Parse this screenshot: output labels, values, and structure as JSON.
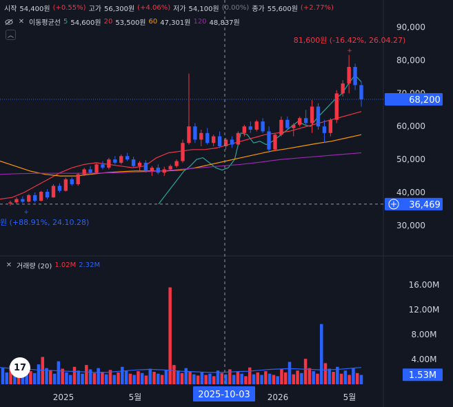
{
  "ohlc_legend": {
    "open_label": "시작",
    "open_value": "54,400원",
    "open_change": "(+0.55%)",
    "high_label": "고가",
    "high_value": "56,300원",
    "high_change": "(+4.06%)",
    "low_label": "저가",
    "low_value": "54,100원",
    "low_change": "(0.00%)",
    "close_label": "종가",
    "close_value": "55,600원",
    "close_change": "(+2.77%)"
  },
  "ma_legend": {
    "title": "이동평균선",
    "items": [
      {
        "period": "5",
        "value": "54,600원",
        "color": "#26a69a"
      },
      {
        "period": "20",
        "value": "53,500원",
        "color": "#f23645"
      },
      {
        "period": "60",
        "value": "47,301원",
        "color": "#ff9800"
      },
      {
        "period": "120",
        "value": "48,837원",
        "color": "#9c27b0"
      }
    ]
  },
  "volume_legend": {
    "title": "거래량 (20)",
    "value_red": "1.02M",
    "value_blue": "2.32M"
  },
  "annotations": {
    "high_label": "81,600원 (-16.42%, 26.04.27)",
    "low_label": "원 (+88.91%, 24.10.28)"
  },
  "price_badges": {
    "last_price": "68,200",
    "crosshair_price": "36,469",
    "volume_last": "1.53M"
  },
  "crosshair_date": "2025-10-03",
  "icons": {
    "eye": "eye-icon",
    "close": "close-icon",
    "collapse": "chevron-up-icon",
    "plus": "plus-circle-icon",
    "logo": "tradingview-logo"
  },
  "colors": {
    "background": "#131722",
    "up": "#f23645",
    "down": "#2962ff",
    "grid": "#1e222d"
  },
  "chart_data": [
    {
      "type": "candlestick",
      "title": "",
      "x_tick_labels": [
        "2025",
        "5월",
        "2026",
        "5월"
      ],
      "y_tick_labels": [
        "30,000",
        "40,000",
        "50,000",
        "60,000",
        "70,000",
        "80,000",
        "90,000"
      ],
      "ylim": [
        21000,
        92000
      ],
      "grid": false,
      "series": [
        {
          "name": "5",
          "color": "#26a69a",
          "values": [
            36500,
            39000,
            41500,
            44000,
            46500,
            48000,
            50000,
            50500,
            49000,
            47500,
            46800,
            47500,
            50000,
            58000,
            57500,
            55000,
            55500,
            54500,
            55500,
            57000,
            58500,
            60000,
            61500,
            60500,
            60000,
            62500,
            64500,
            66500,
            68500,
            70000,
            73000,
            75500,
            73500
          ]
        },
        {
          "name": "20",
          "color": "#f23645",
          "values": [
            38000,
            38500,
            40000,
            42000,
            44000,
            46000,
            47500,
            48500,
            49000,
            48500,
            48000,
            47500,
            48000,
            50500,
            52000,
            52500,
            53000,
            53000,
            53500,
            54500,
            55500,
            56500,
            57500,
            58000,
            58500,
            59500,
            60500,
            61500,
            62500,
            63500,
            64500
          ]
        },
        {
          "name": "60",
          "color": "#ff9800",
          "values": [
            49500,
            48000,
            46500,
            45500,
            45000,
            45000,
            45500,
            46000,
            46300,
            46500,
            46500,
            46500,
            46800,
            47500,
            48500,
            49500,
            50500,
            51500,
            52500,
            53200,
            54000,
            54800,
            55500,
            56500,
            57500
          ]
        },
        {
          "name": "120",
          "color": "#9c27b0",
          "values": [
            45500,
            45700,
            45800,
            45800,
            45800,
            45900,
            46000,
            46200,
            46500,
            47000,
            47500,
            48000,
            48500,
            49200,
            50000,
            50500,
            51000,
            51500,
            52000
          ]
        }
      ],
      "candles": [
        [
          36700,
          37500,
          36000,
          37000
        ],
        [
          37000,
          38500,
          36500,
          38000
        ],
        [
          38000,
          38800,
          36800,
          37200
        ],
        [
          37200,
          39500,
          37000,
          39200
        ],
        [
          39200,
          40000,
          37000,
          37500
        ],
        [
          37500,
          40500,
          37300,
          40200
        ],
        [
          40200,
          41000,
          38000,
          38500
        ],
        [
          38500,
          42500,
          38400,
          42000
        ],
        [
          42000,
          42800,
          40000,
          40500
        ],
        [
          40500,
          44500,
          40300,
          44000
        ],
        [
          44000,
          44600,
          42000,
          42500
        ],
        [
          42500,
          46000,
          42000,
          45500
        ],
        [
          45500,
          47500,
          45000,
          47000
        ],
        [
          47000,
          48000,
          45500,
          46000
        ],
        [
          46000,
          49000,
          45800,
          48500
        ],
        [
          48500,
          49500,
          47000,
          47500
        ],
        [
          47500,
          50500,
          47000,
          50000
        ],
        [
          50000,
          51000,
          48500,
          49000
        ],
        [
          49000,
          51500,
          48500,
          51000
        ],
        [
          51000,
          52000,
          49500,
          50000
        ],
        [
          50000,
          50800,
          47500,
          48000
        ],
        [
          48000,
          49500,
          46500,
          49000
        ],
        [
          49000,
          49800,
          46000,
          46500
        ],
        [
          46500,
          48000,
          45000,
          47500
        ],
        [
          47500,
          48500,
          45500,
          46000
        ],
        [
          46000,
          47800,
          45000,
          47000
        ],
        [
          47000,
          48500,
          46500,
          48000
        ],
        [
          48000,
          50000,
          47500,
          49500
        ],
        [
          49500,
          56000,
          49000,
          55000
        ],
        [
          55000,
          76000,
          54500,
          60000
        ],
        [
          60000,
          61000,
          55000,
          56000
        ],
        [
          56000,
          59000,
          54000,
          58000
        ],
        [
          58000,
          59500,
          54500,
          55000
        ],
        [
          55000,
          57500,
          54000,
          57000
        ],
        [
          57000,
          58500,
          53500,
          54000
        ],
        [
          54000,
          56500,
          53000,
          56000
        ],
        [
          56000,
          57000,
          53500,
          54500
        ],
        [
          54500,
          58500,
          54000,
          58000
        ],
        [
          58000,
          60500,
          57000,
          60000
        ],
        [
          60000,
          61500,
          58000,
          59000
        ],
        [
          59000,
          62000,
          58500,
          61500
        ],
        [
          61500,
          62500,
          58000,
          58500
        ],
        [
          58500,
          60000,
          52000,
          53000
        ],
        [
          53000,
          58000,
          52500,
          57500
        ],
        [
          57500,
          63000,
          57000,
          62000
        ],
        [
          62000,
          63000,
          59000,
          59500
        ],
        [
          59500,
          61000,
          57000,
          60500
        ],
        [
          60500,
          63000,
          60000,
          62500
        ],
        [
          62500,
          65000,
          60000,
          61000
        ],
        [
          61000,
          68000,
          58000,
          66000
        ],
        [
          66000,
          67000,
          59000,
          60000
        ],
        [
          60000,
          62000,
          55000,
          58000
        ],
        [
          58000,
          62500,
          57000,
          62000
        ],
        [
          62000,
          71000,
          61000,
          70000
        ],
        [
          70000,
          74000,
          69000,
          73000
        ],
        [
          73000,
          81600,
          70000,
          78000
        ],
        [
          78000,
          79000,
          71000,
          72500
        ],
        [
          72500,
          73500,
          66000,
          68200
        ]
      ],
      "volume": {
        "title": "거래량 (20)",
        "y_tick_labels": [
          "4.00M",
          "8.00M",
          "12.00M",
          "16.00M"
        ],
        "ylim": [
          0,
          18000000
        ],
        "values": [
          2600000,
          1900000,
          3000000,
          2400000,
          1600000,
          2200000,
          3600000,
          2100000,
          1800000,
          3200000,
          4400000,
          2600000,
          2300000,
          1700000,
          3700000,
          2500000,
          1900000,
          1500000,
          2800000,
          2200000,
          1700000,
          3100000,
          2400000,
          1800000,
          2600000,
          2000000,
          1600000,
          2300000,
          1500000,
          1900000,
          2800000,
          2200000,
          1700000,
          1500000,
          2100000,
          1800000,
          1400000,
          2500000,
          2000000,
          1700000,
          1500000,
          2300000,
          15600000,
          3100000,
          2200000,
          1800000,
          2600000,
          2000000,
          1600000,
          1400000,
          1900000,
          1500000,
          1700000,
          1300000,
          2200000,
          1800000,
          1600000,
          2400000,
          1500000,
          2000000,
          1700000,
          1300000,
          2700000,
          1600000,
          1900000,
          1500000,
          2100000,
          1700000,
          1500000,
          1300000,
          2500000,
          1900000,
          3600000,
          1600000,
          2200000,
          1800000,
          4100000,
          2600000,
          2100000,
          1700000,
          9700000,
          3400000,
          2500000,
          2000000,
          2800000,
          1700000,
          2200000,
          1500000,
          2600000,
          1800000,
          1500000
        ],
        "ma": [
          2700000,
          2600000,
          2550000,
          2500000,
          2400000,
          2300000,
          2250000,
          2200000,
          2150000,
          2100000,
          2050000,
          2000000,
          1950000,
          1900000,
          1900000,
          2000000,
          2100000,
          2200000,
          2300000,
          2350000,
          2400000,
          2350000,
          2300000,
          2200000,
          2100000,
          2050000,
          2000000,
          1950000,
          1900000,
          1900000,
          1950000,
          2000000,
          2050000,
          2100000,
          2200000,
          2300000,
          2400000,
          2450000,
          2500000,
          2500000,
          2450000,
          2400000,
          2350000,
          2300000,
          2350000,
          2400000,
          2500000,
          2600000,
          2700000
        ]
      }
    }
  ]
}
